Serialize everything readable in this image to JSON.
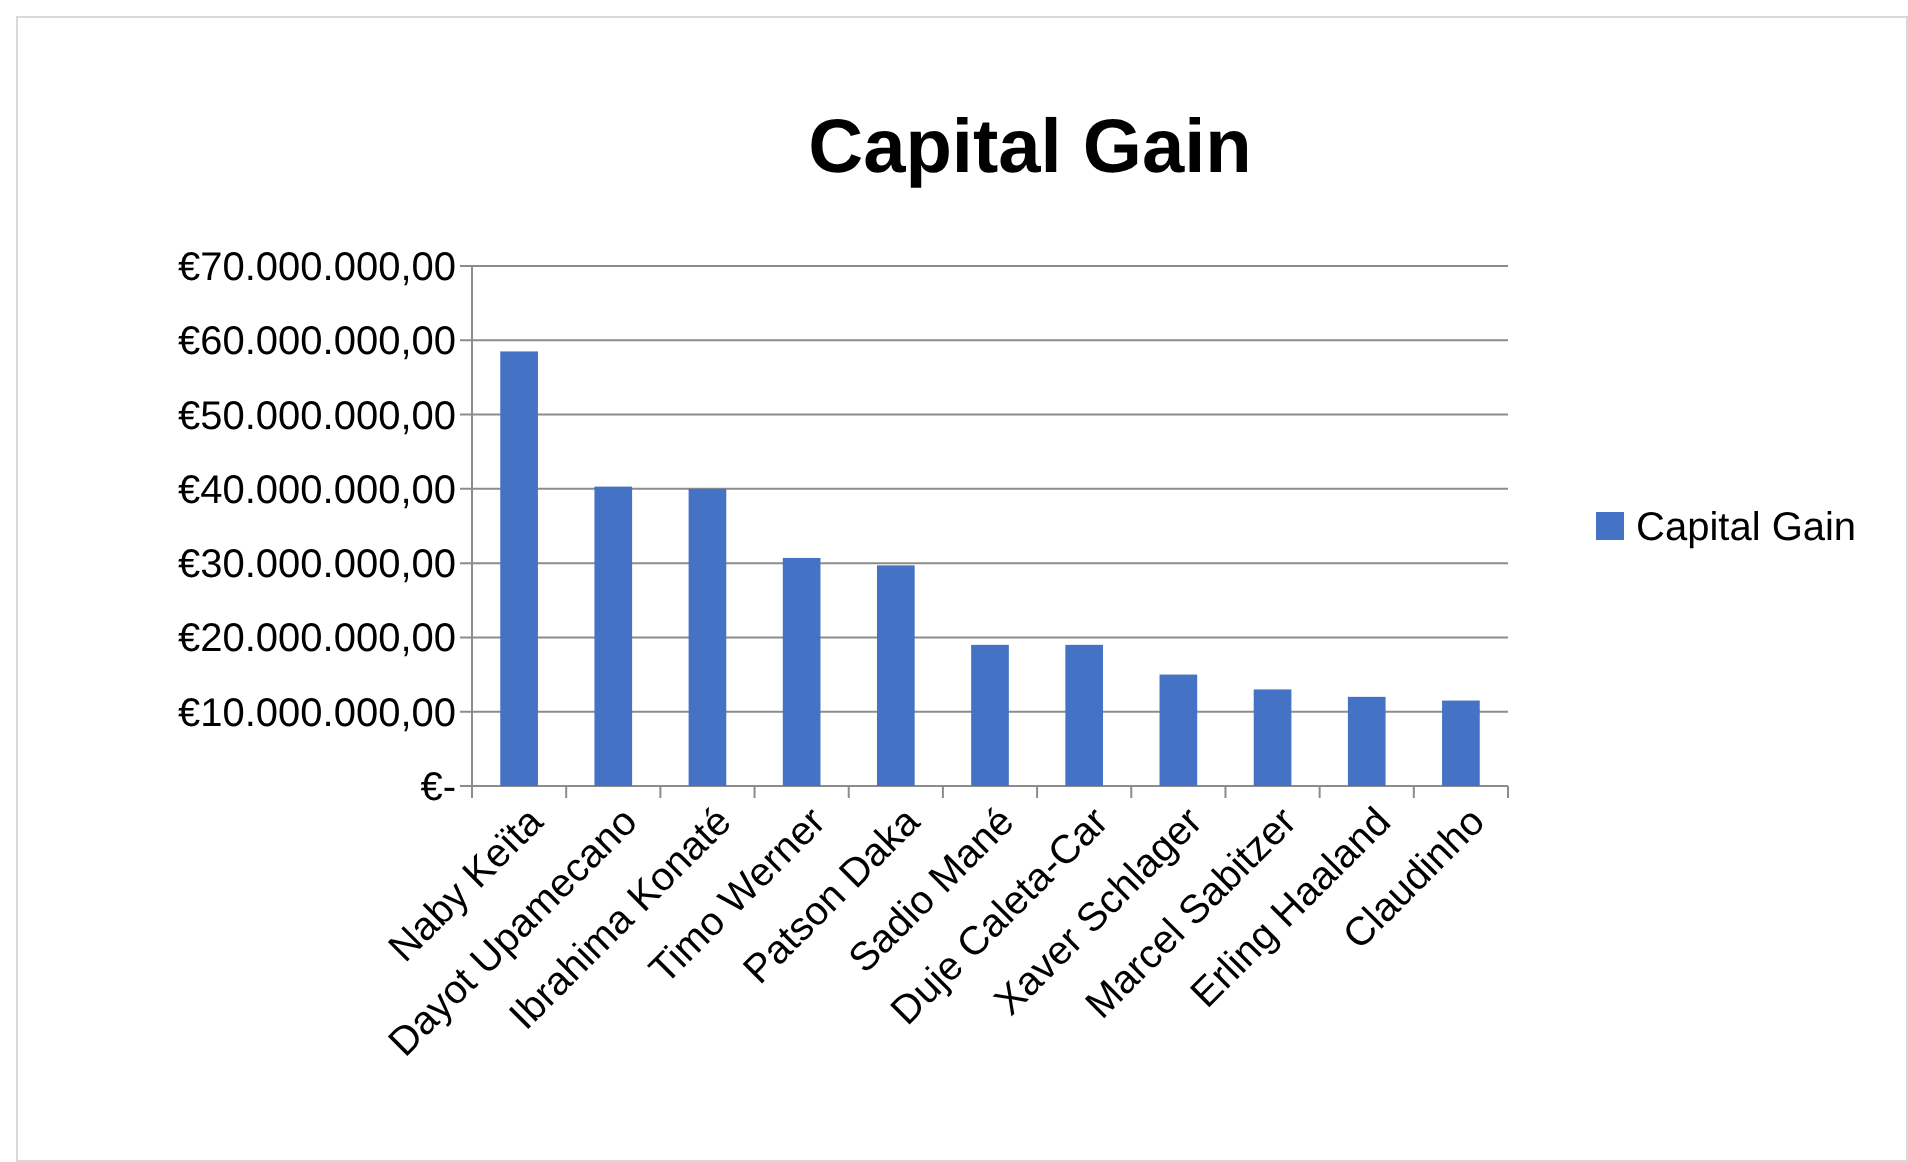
{
  "chart_data": {
    "type": "bar",
    "title": "Capital Gain",
    "categories": [
      "Naby Keïta",
      "Dayot Upamecano",
      "Ibrahima Konaté",
      "Timo Werner",
      "Patson Daka",
      "Sadio Mané",
      "Duje Caleta-Car",
      "Xaver Schlager",
      "Marcel Sabitzer",
      "Erling Haaland",
      "Claudinho"
    ],
    "series": [
      {
        "name": "Capital Gain",
        "color": "#4472c4",
        "values": [
          58500000,
          40300000,
          40000000,
          30700000,
          29700000,
          19000000,
          19000000,
          15000000,
          13000000,
          12000000,
          11500000
        ]
      }
    ],
    "ylim": [
      0,
      70000000
    ],
    "yticks": [
      {
        "value": 0,
        "label": "€-"
      },
      {
        "value": 10000000,
        "label": "€10.000.000,00"
      },
      {
        "value": 20000000,
        "label": "€20.000.000,00"
      },
      {
        "value": 30000000,
        "label": "€30.000.000,00"
      },
      {
        "value": 40000000,
        "label": "€40.000.000,00"
      },
      {
        "value": 50000000,
        "label": "€50.000.000,00"
      },
      {
        "value": 60000000,
        "label": "€60.000.000,00"
      },
      {
        "value": 70000000,
        "label": "€70.000.000,00"
      }
    ],
    "grid": "y",
    "legend": "right"
  }
}
